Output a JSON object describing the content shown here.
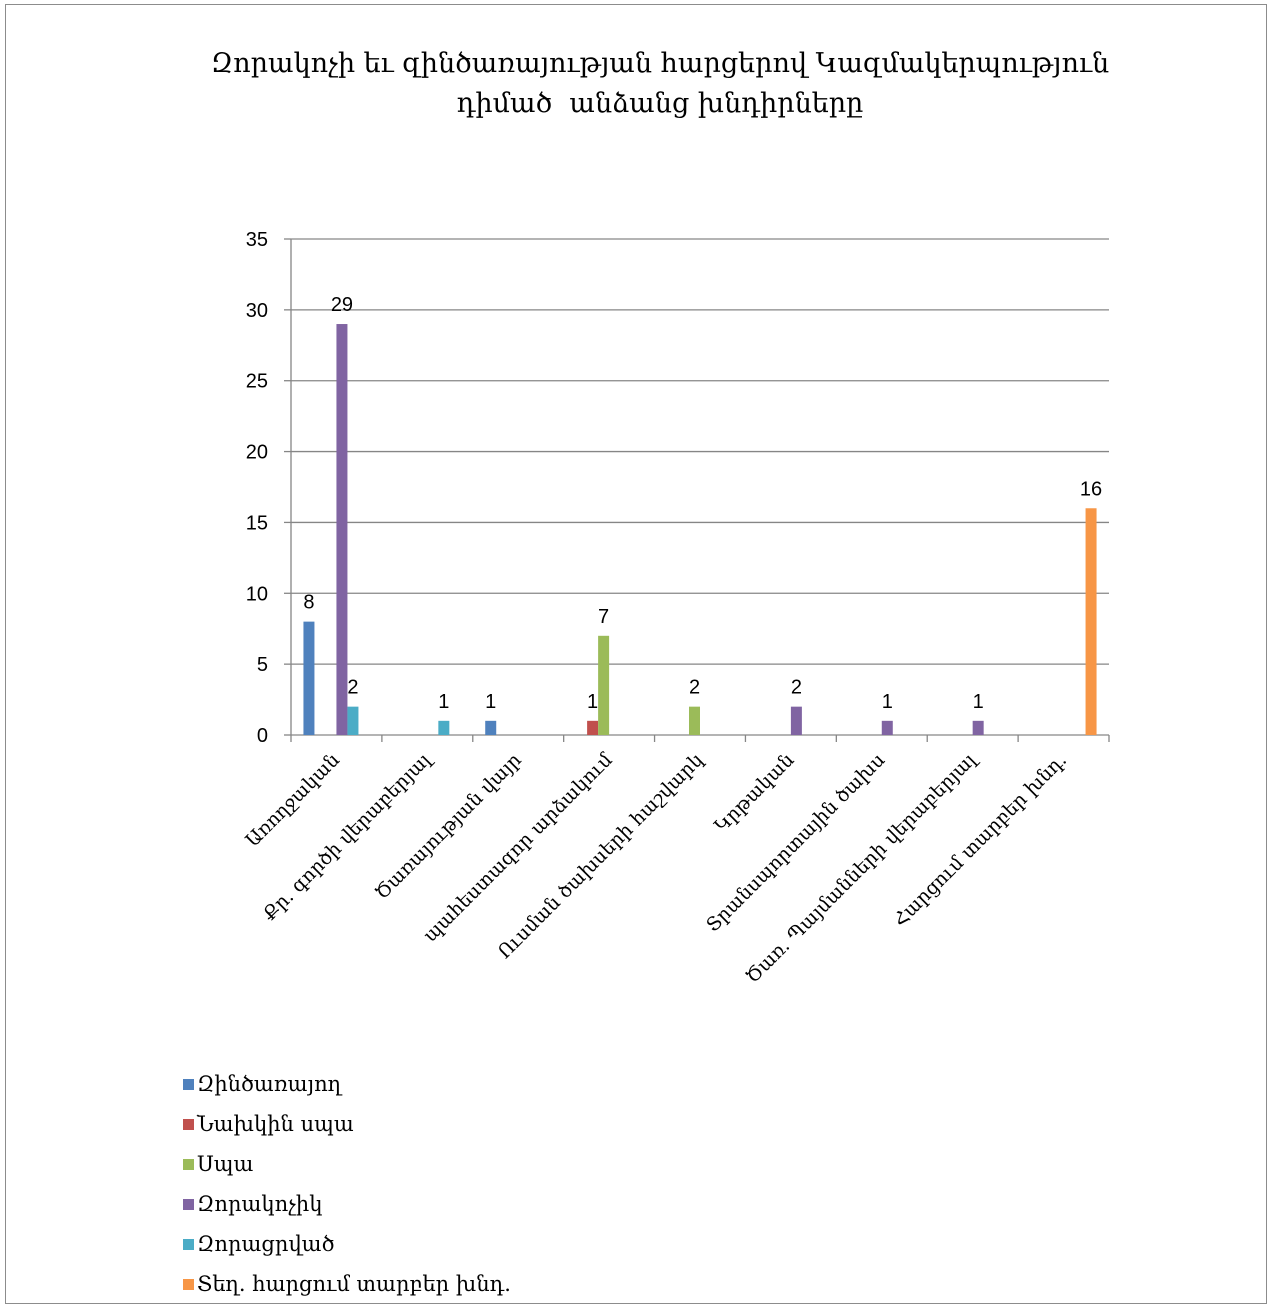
{
  "chart_data": {
    "type": "bar",
    "title_lines": [
      "Զորակոչի եւ զինծառայության հարցերով Կազմակերպություն",
      "դիմած  անձանց խնդիրները"
    ],
    "categories": [
      "Առողջական",
      "Քր. գործի վերաբերյալ",
      "Ծառայության վայր",
      "պահեստազոր արձակում",
      "Ուսման ծախսերի հաշվարկ",
      "Կրթական",
      "Տրանսպորտային ծախս",
      "Ծառ. Պայմանների վերաբերյալ",
      "Հարցում տարբեր խնդ."
    ],
    "series": [
      {
        "name": "Զինծառայող",
        "color": "#4f81bd",
        "values": [
          8,
          0,
          1,
          0,
          0,
          0,
          0,
          0,
          0
        ]
      },
      {
        "name": "Նախկին սպա",
        "color": "#c0504d",
        "values": [
          0,
          0,
          0,
          1,
          0,
          0,
          0,
          0,
          0
        ]
      },
      {
        "name": "Սպա",
        "color": "#9bbb59",
        "values": [
          0,
          0,
          0,
          7,
          2,
          0,
          0,
          0,
          0
        ]
      },
      {
        "name": "Զորակոչիկ",
        "color": "#8064a2",
        "values": [
          29,
          0,
          0,
          0,
          0,
          2,
          1,
          1,
          0
        ]
      },
      {
        "name": "Զորացրված",
        "color": "#4bacc6",
        "values": [
          2,
          1,
          0,
          0,
          0,
          0,
          0,
          0,
          0
        ]
      },
      {
        "name": "Տեղ. հարցում տարբեր խնդ.",
        "color": "#f79646",
        "values": [
          0,
          0,
          0,
          0,
          0,
          0,
          0,
          0,
          16
        ]
      }
    ],
    "ylim": [
      0,
      35
    ],
    "yticks": [
      0,
      5,
      10,
      15,
      20,
      25,
      30,
      35
    ],
    "grid": true,
    "legend_position": "bottom-left"
  }
}
